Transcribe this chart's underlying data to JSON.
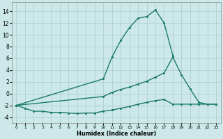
{
  "bg_color": "#cce8e8",
  "grid_color": "#aacccc",
  "line_color": "#1a7a6a",
  "xlabel": "Humidex (Indice chaleur)",
  "xlim": [
    -0.5,
    23.5
  ],
  "ylim": [
    -5,
    15.5
  ],
  "yticks": [
    -4,
    -2,
    0,
    2,
    4,
    6,
    8,
    10,
    12,
    14
  ],
  "xticks": [
    0,
    1,
    2,
    3,
    4,
    5,
    6,
    7,
    8,
    9,
    10,
    11,
    12,
    13,
    14,
    15,
    16,
    17,
    18,
    19,
    20,
    21,
    22,
    23
  ],
  "line1_x": [
    0,
    10,
    11,
    12,
    13,
    14,
    15,
    16,
    17,
    18
  ],
  "line1_y": [
    -2,
    2.5,
    6.2,
    9.0,
    11.2,
    12.8,
    13.1,
    14.2,
    12.0,
    6.5
  ],
  "line2_x": [
    0,
    10,
    11,
    12,
    13,
    14,
    15,
    16,
    17,
    18,
    19,
    20,
    21,
    22,
    23
  ],
  "line2_y": [
    -2,
    -0.5,
    0.2,
    0.7,
    1.1,
    1.6,
    2.1,
    2.8,
    3.5,
    6.2,
    3.2,
    0.8,
    -1.5,
    -1.8,
    -1.8
  ],
  "line3_x": [
    0,
    1,
    2,
    3,
    4,
    5,
    6,
    7,
    8,
    9,
    10,
    11,
    12,
    13,
    14,
    15,
    16,
    17,
    18,
    19,
    20,
    21,
    22,
    23
  ],
  "line3_y": [
    -2,
    -2.5,
    -3.0,
    -3.0,
    -3.2,
    -3.2,
    -3.3,
    -3.4,
    -3.3,
    -3.3,
    -3.0,
    -2.8,
    -2.5,
    -2.2,
    -1.8,
    -1.5,
    -1.2,
    -1.0,
    -1.8,
    -1.8,
    -1.8,
    -1.8,
    -1.8,
    -1.8
  ]
}
